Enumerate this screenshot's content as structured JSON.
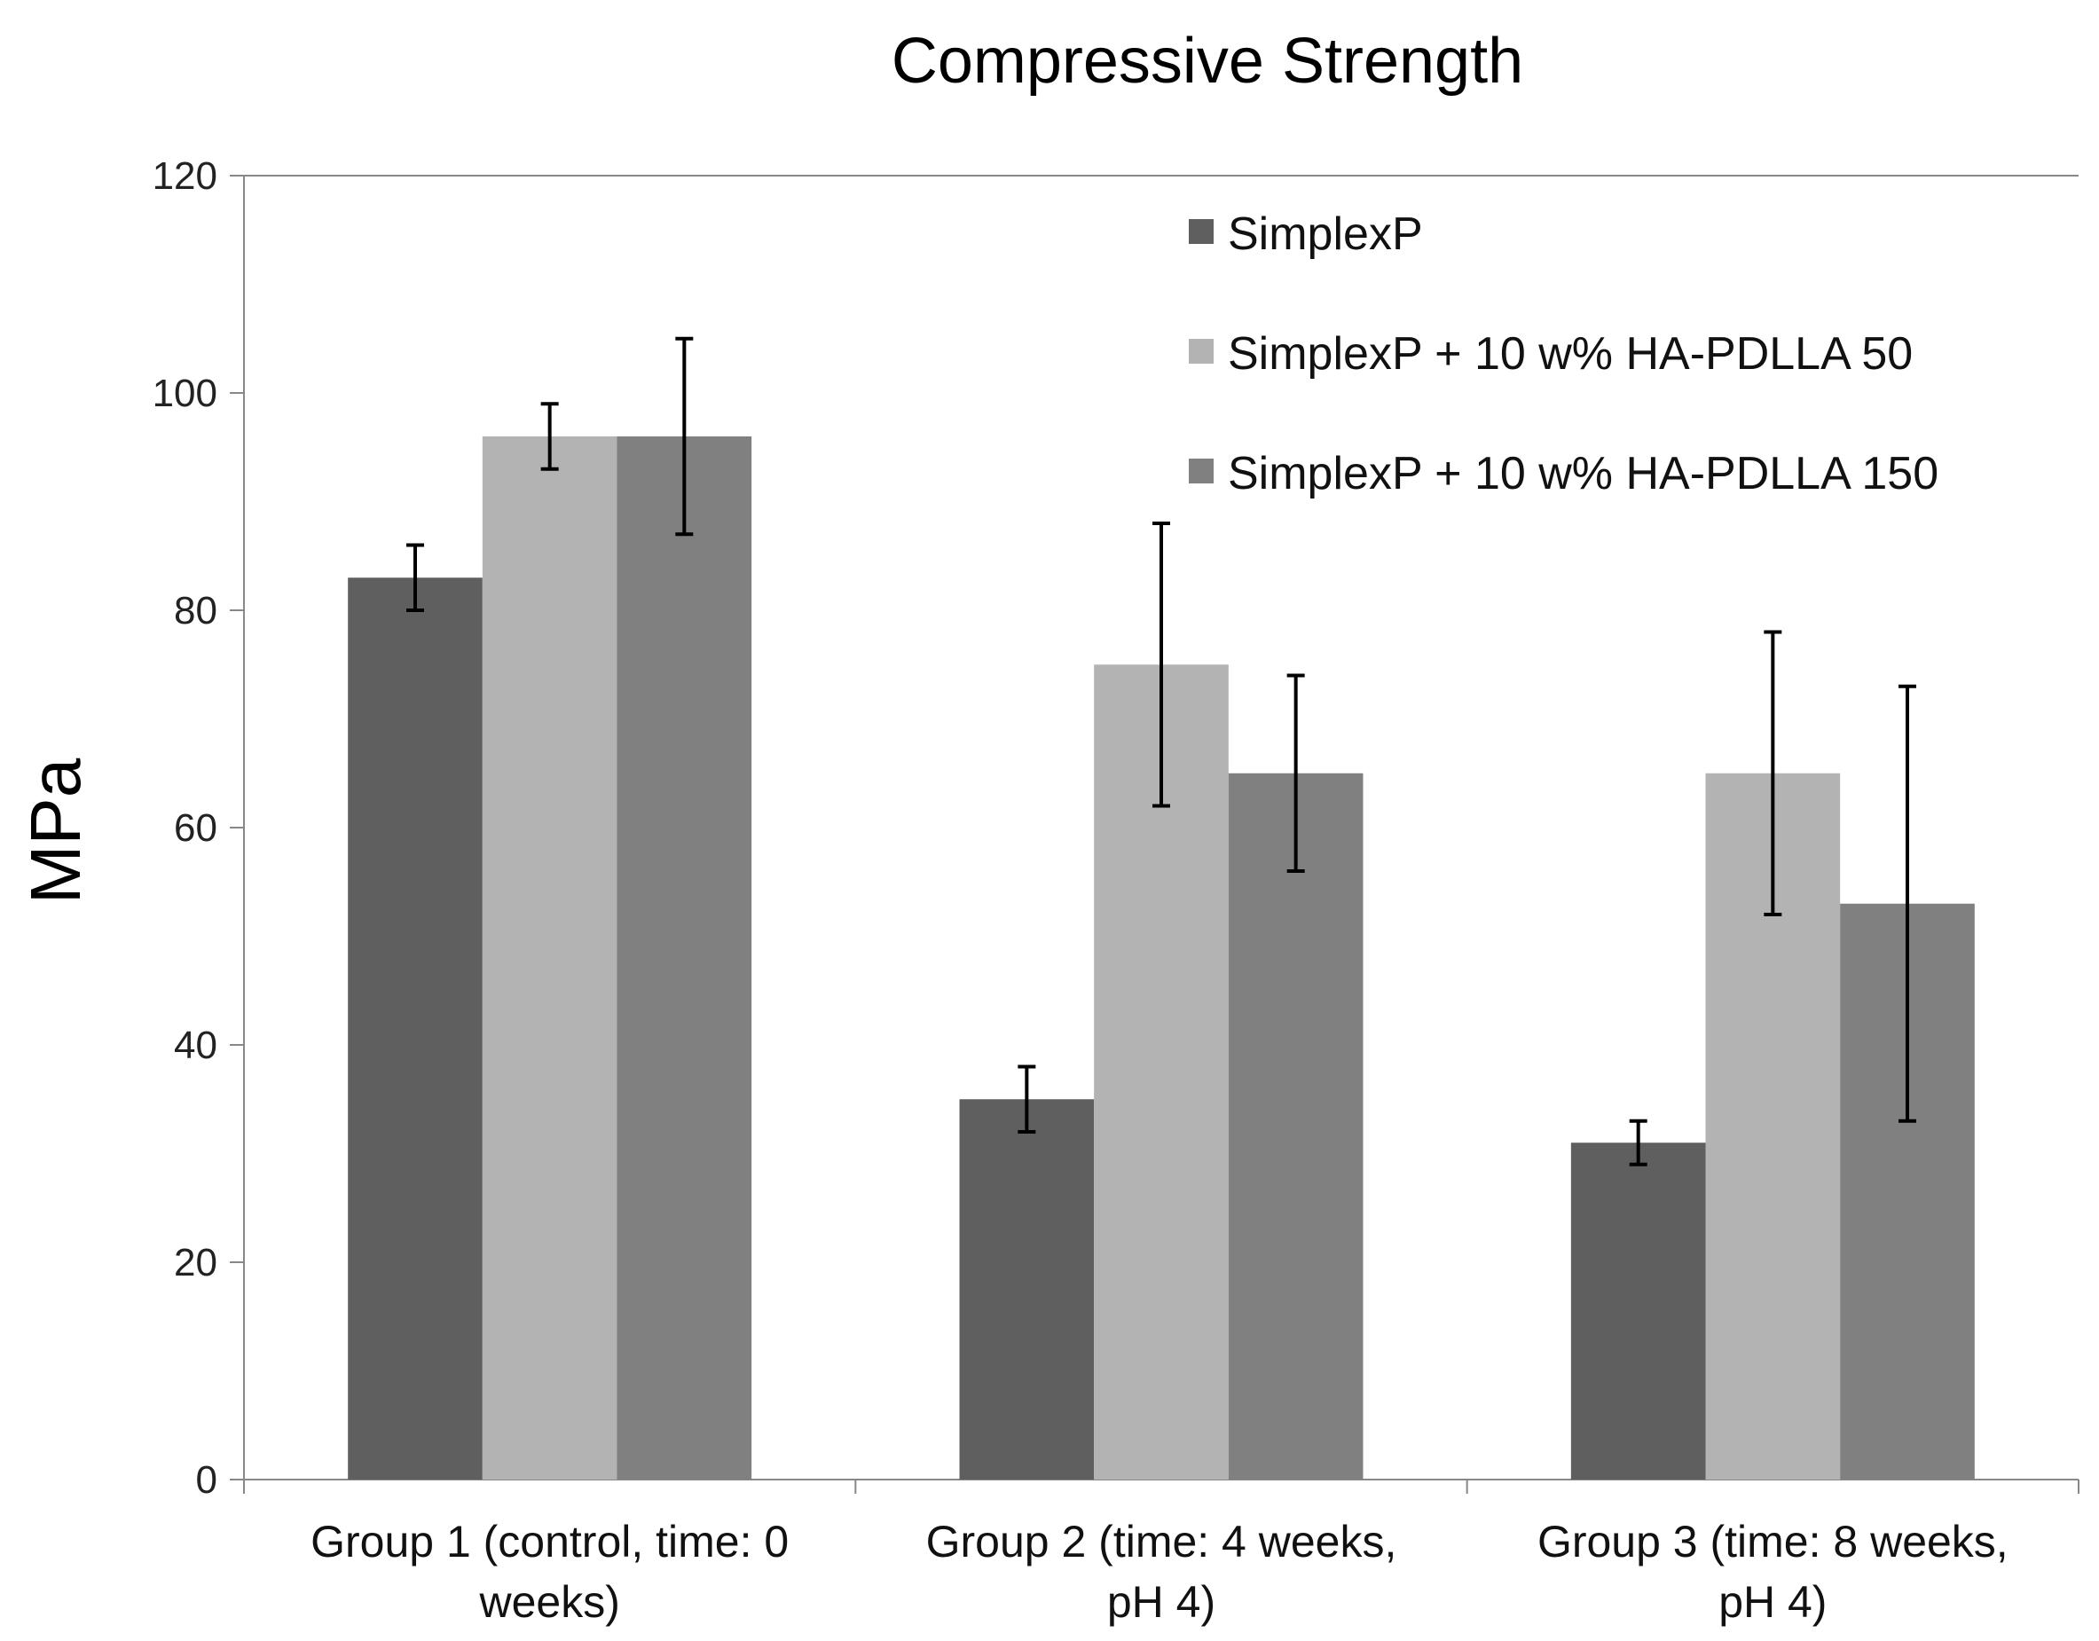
{
  "chart_data": {
    "type": "bar",
    "title": "Compressive Strength",
    "xlabel": "",
    "ylabel": "MPa",
    "ylim": [
      0,
      120
    ],
    "yticks": [
      "0",
      "20",
      "40",
      "60",
      "80",
      "100",
      "120"
    ],
    "categories": [
      [
        "Group 1 (control, time: 0",
        "weeks)"
      ],
      [
        "Group 2 (time: 4 weeks,",
        "pH 4)"
      ],
      [
        "Group 3 (time: 8 weeks,",
        "pH 4)"
      ]
    ],
    "series": [
      {
        "name": "SimplexP",
        "color": "#5f5f5f",
        "values": [
          83,
          35,
          31
        ],
        "errors": [
          3,
          3,
          2
        ]
      },
      {
        "name": "SimplexP + 10 w% HA-PDLLA 50",
        "color": "#b3b3b3",
        "values": [
          96,
          75,
          65
        ],
        "errors": [
          3,
          13,
          13
        ]
      },
      {
        "name": "SimplexP + 10 w% HA-PDLLA 150",
        "color": "#808080",
        "values": [
          96,
          65,
          53
        ],
        "errors": [
          9,
          9,
          20
        ]
      }
    ],
    "grid": false,
    "legend_position": "top-right"
  }
}
